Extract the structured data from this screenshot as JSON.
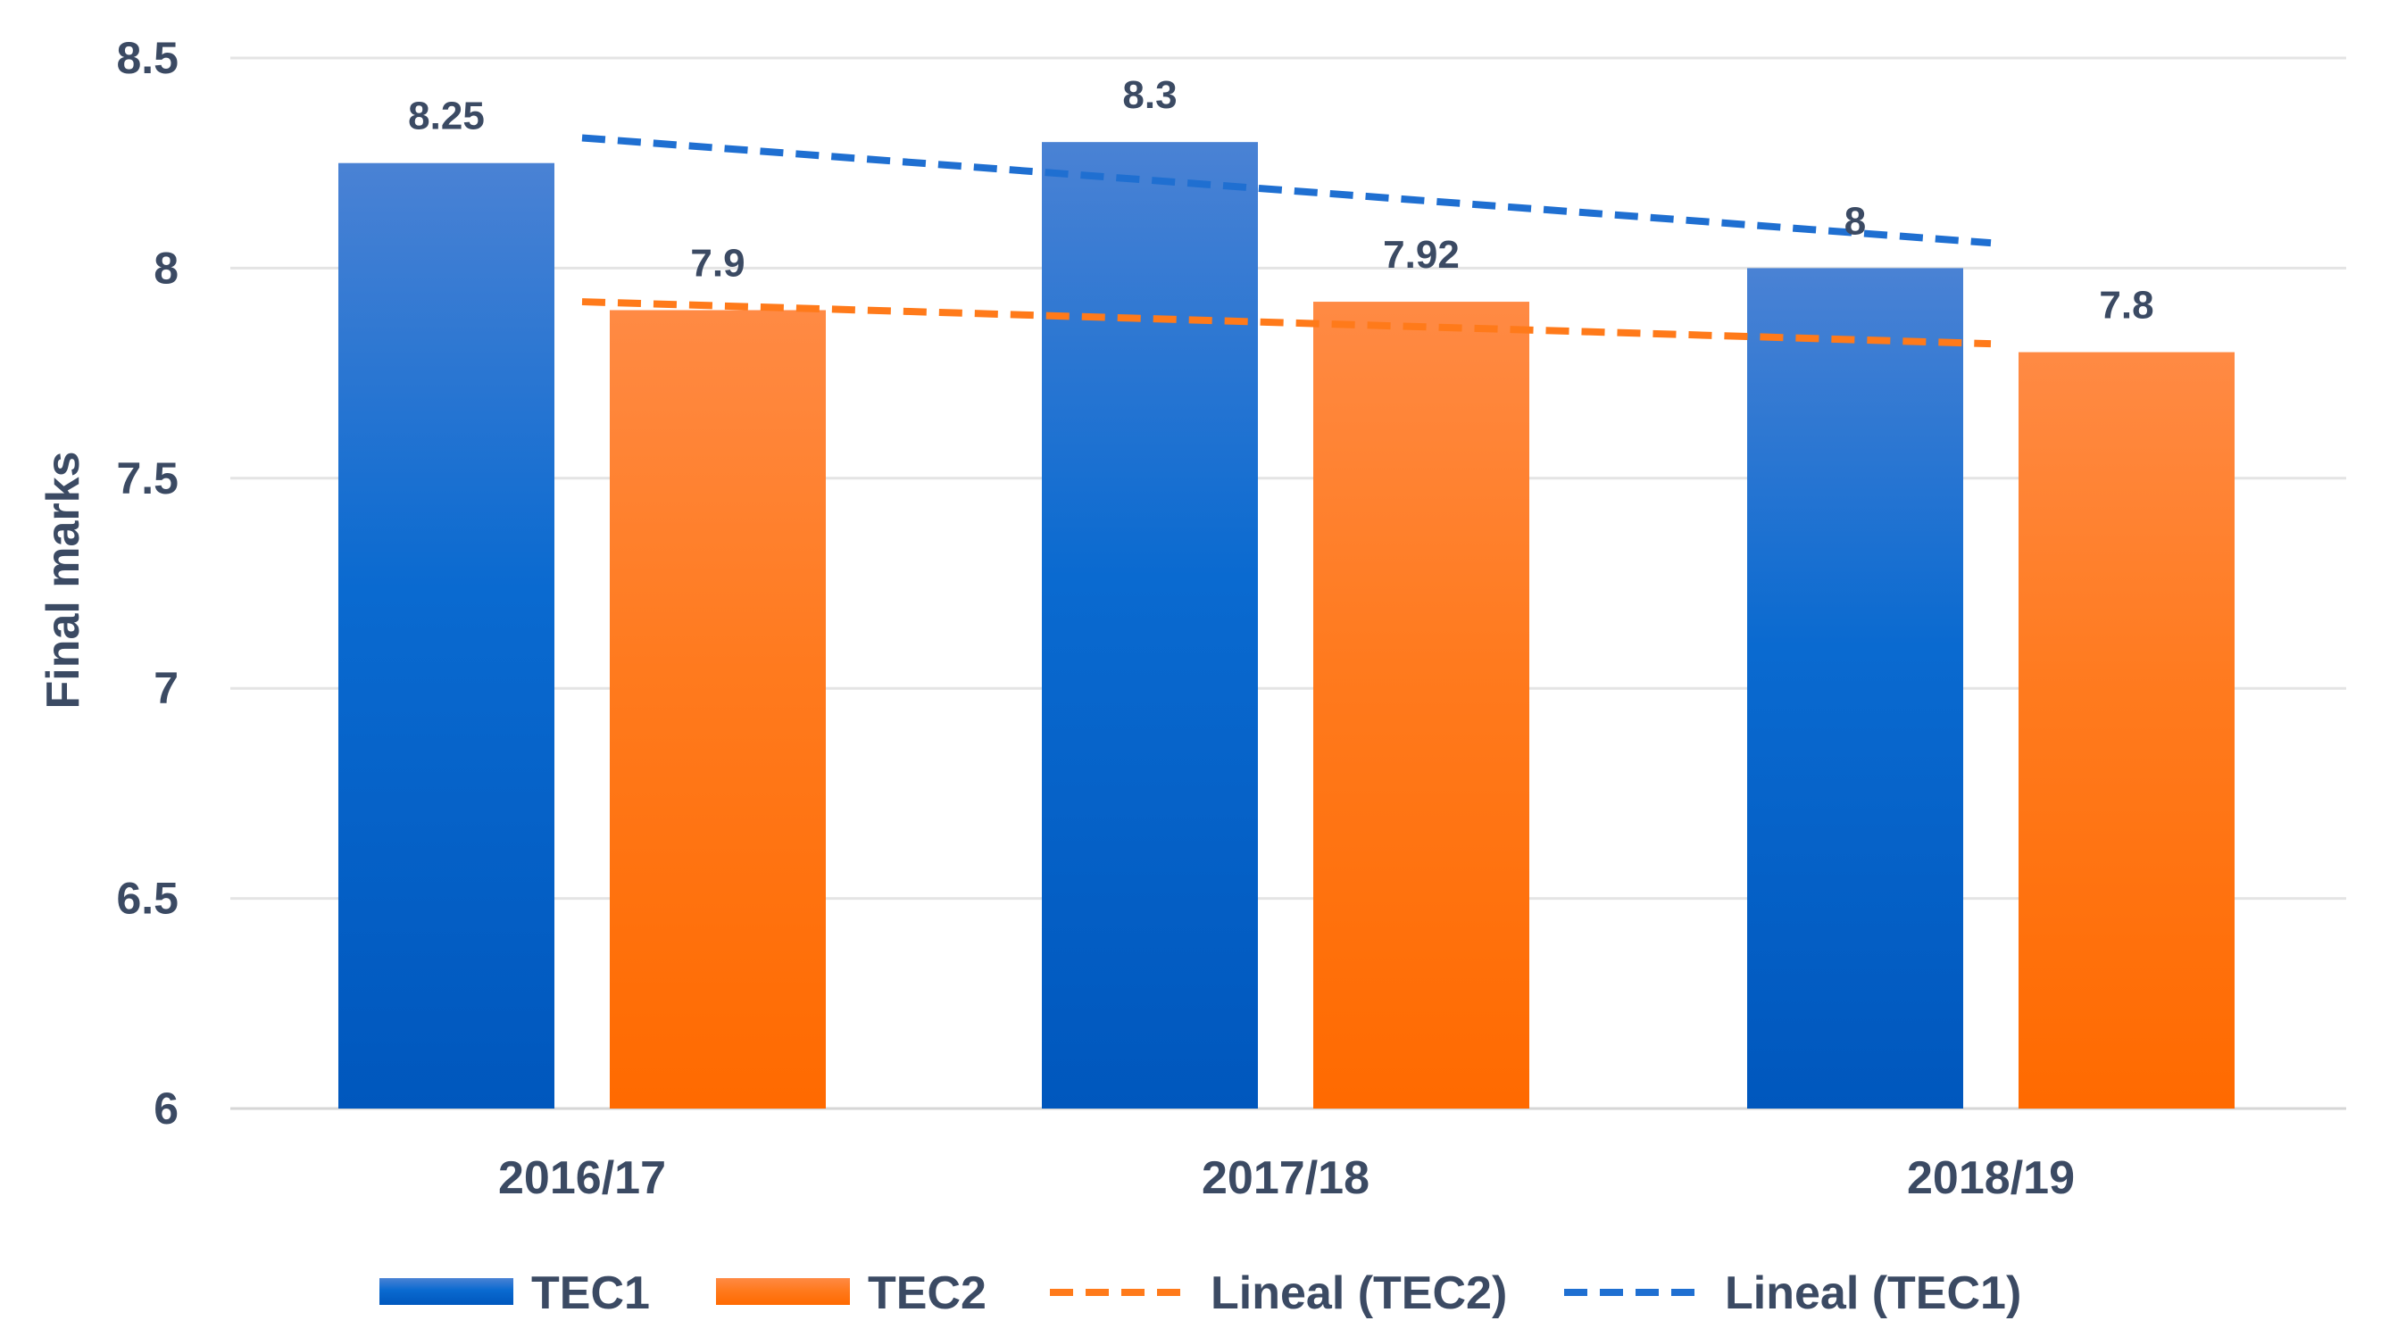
{
  "chart_data": {
    "type": "bar",
    "categories": [
      "2016/17",
      "2017/18",
      "2018/19"
    ],
    "series": [
      {
        "name": "TEC1",
        "values": [
          8.25,
          8.3,
          8
        ],
        "color": "#1f6fd1"
      },
      {
        "name": "TEC2",
        "values": [
          7.9,
          7.92,
          7.8
        ],
        "color": "#ff7a1a"
      }
    ],
    "trendlines": [
      {
        "name": "Lineal (TEC2)",
        "series": "TEC2",
        "start": 7.92,
        "end": 7.82,
        "color": "#ff7a1a"
      },
      {
        "name": "Lineal (TEC1)",
        "series": "TEC1",
        "start": 8.31,
        "end": 8.06,
        "color": "#1f6fd1"
      }
    ],
    "data_labels": [
      [
        "8.25",
        "8.3",
        "8"
      ],
      [
        "7.9",
        "7.92",
        "7.8"
      ]
    ],
    "title": "",
    "xlabel": "",
    "ylabel": "Final marks",
    "ylim": [
      6,
      8.5
    ],
    "yticks": [
      6,
      6.5,
      7,
      7.5,
      8,
      8.5
    ],
    "ytick_labels": [
      "6",
      "6.5",
      "7",
      "7.5",
      "8",
      "8.5"
    ],
    "grid": true,
    "legend_position": "bottom",
    "legend": [
      "TEC1",
      "TEC2",
      "Lineal (TEC2)",
      "Lineal (TEC1)"
    ]
  }
}
